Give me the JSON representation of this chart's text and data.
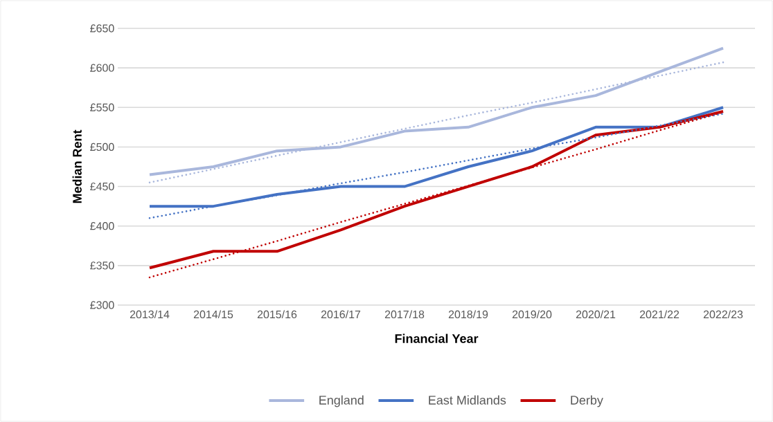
{
  "chart_data": {
    "type": "line",
    "xlabel": "Financial Year",
    "ylabel": "Median Rent",
    "categories": [
      "2013/14",
      "2014/15",
      "2015/16",
      "2016/17",
      "2017/18",
      "2018/19",
      "2019/20",
      "2020/21",
      "2021/22",
      "2022/23"
    ],
    "series": [
      {
        "name": "England",
        "color": "#A9B7DC",
        "values": [
          465,
          475,
          495,
          500,
          520,
          525,
          550,
          565,
          595,
          625
        ]
      },
      {
        "name": "East Midlands",
        "color": "#4472C4",
        "values": [
          425,
          425,
          440,
          450,
          450,
          475,
          495,
          525,
          525,
          550
        ]
      },
      {
        "name": "Derby",
        "color": "#C00000",
        "values": [
          347,
          368,
          368,
          395,
          425,
          450,
          475,
          515,
          525,
          545
        ]
      },
      {
        "color": "#A9B7DC",
        "line_style": "dotted",
        "values": [
          455,
          472,
          489,
          506,
          523,
          540,
          556,
          573,
          590,
          607
        ]
      },
      {
        "color": "#4472C4",
        "line_style": "dotted",
        "values": [
          410,
          425,
          439,
          454,
          468,
          483,
          498,
          512,
          527,
          542
        ]
      },
      {
        "color": "#C00000",
        "line_style": "dotted",
        "values": [
          335,
          358,
          381,
          405,
          428,
          451,
          474,
          497,
          521,
          544
        ]
      }
    ],
    "ylim": [
      300,
      650
    ],
    "yticks": [
      {
        "value": 300,
        "label": "£300"
      },
      {
        "value": 350,
        "label": "£350"
      },
      {
        "value": 400,
        "label": "£400"
      },
      {
        "value": 450,
        "label": "£450"
      },
      {
        "value": 500,
        "label": "£500"
      },
      {
        "value": 550,
        "label": "£550"
      },
      {
        "value": 600,
        "label": "£600"
      },
      {
        "value": 650,
        "label": "£650"
      }
    ],
    "grid": "y",
    "legend": "bottom",
    "line_style": "solid",
    "marker": "none"
  }
}
